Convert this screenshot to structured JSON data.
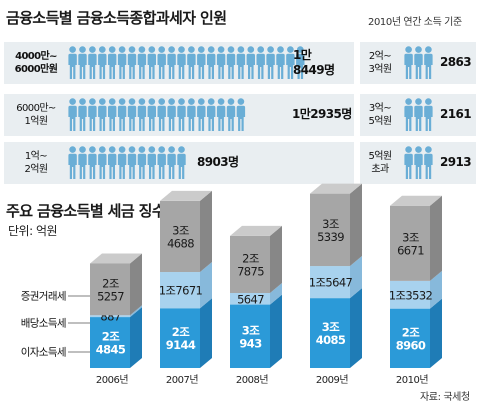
{
  "top": {
    "title": "금융소득별 금융소득종합과세자 인원",
    "note": "2010년 연간 소득 기준",
    "groups": [
      {
        "label_lines": [
          "4000만~",
          "6000만원"
        ],
        "value_lines": [
          "1만",
          "8449명"
        ],
        "icons": 24,
        "bold": true
      },
      {
        "label_lines": [
          "6000만~",
          "1억원"
        ],
        "value_lines": [
          "1만2935명"
        ],
        "icons": 18,
        "bold": false
      },
      {
        "label_lines": [
          "1억~",
          "2억원"
        ],
        "value_lines": [
          "8903명"
        ],
        "icons": 12,
        "bold": false
      },
      {
        "label_lines": [
          "2억~",
          "3억원"
        ],
        "value_lines": [
          "2863"
        ],
        "icons": 3,
        "bold": false
      },
      {
        "label_lines": [
          "3억~",
          "5억원"
        ],
        "value_lines": [
          "2161"
        ],
        "icons": 3,
        "bold": false
      },
      {
        "label_lines": [
          "5억원",
          "초과"
        ],
        "value_lines": [
          "2913"
        ],
        "icons": 3,
        "bold": false
      }
    ]
  },
  "bottom": {
    "title": "주요 금융소득별 세금 징수실적",
    "unit": "단위: 억원",
    "source": "자료: 국세청"
  },
  "colors": {
    "icon": "#6aaed6",
    "panel": "#e9eef1",
    "interest_front": "#2b9ad8",
    "interest_side": "#1f7cb6",
    "dividend_front": "#a8d2ee",
    "dividend_side": "#87b9db",
    "dividend_top": "#cfe7f7",
    "securities_front": "#a6a6a6",
    "securities_side": "#878787",
    "securities_top": "#cbcbcb"
  },
  "chart_data": {
    "type": "bar",
    "stacked": true,
    "categories": [
      "2006년",
      "2007년",
      "2008년",
      "2009년",
      "2010년"
    ],
    "series": [
      {
        "name": "이자소득세",
        "values": [
          24845,
          29144,
          30943,
          34085,
          28960
        ],
        "labels": [
          [
            "2조",
            "4845"
          ],
          [
            "2조",
            "9144"
          ],
          [
            "3조",
            "943"
          ],
          [
            "3조",
            "4085"
          ],
          [
            "2조",
            "8960"
          ]
        ]
      },
      {
        "name": "배당소득세",
        "values": [
          887,
          17671,
          5647,
          15647,
          13532
        ],
        "labels": [
          [
            "887"
          ],
          [
            "1조7671"
          ],
          [
            "5647"
          ],
          [
            "1조5647"
          ],
          [
            "1조3532"
          ]
        ]
      },
      {
        "name": "증권거래세",
        "values": [
          25257,
          34688,
          27875,
          35339,
          36671
        ],
        "labels": [
          [
            "2조",
            "5257"
          ],
          [
            "3조",
            "4688"
          ],
          [
            "2조",
            "7875"
          ],
          [
            "3조",
            "5339"
          ],
          [
            "3조",
            "6671"
          ]
        ]
      }
    ],
    "xlabel": "",
    "ylabel": ""
  }
}
